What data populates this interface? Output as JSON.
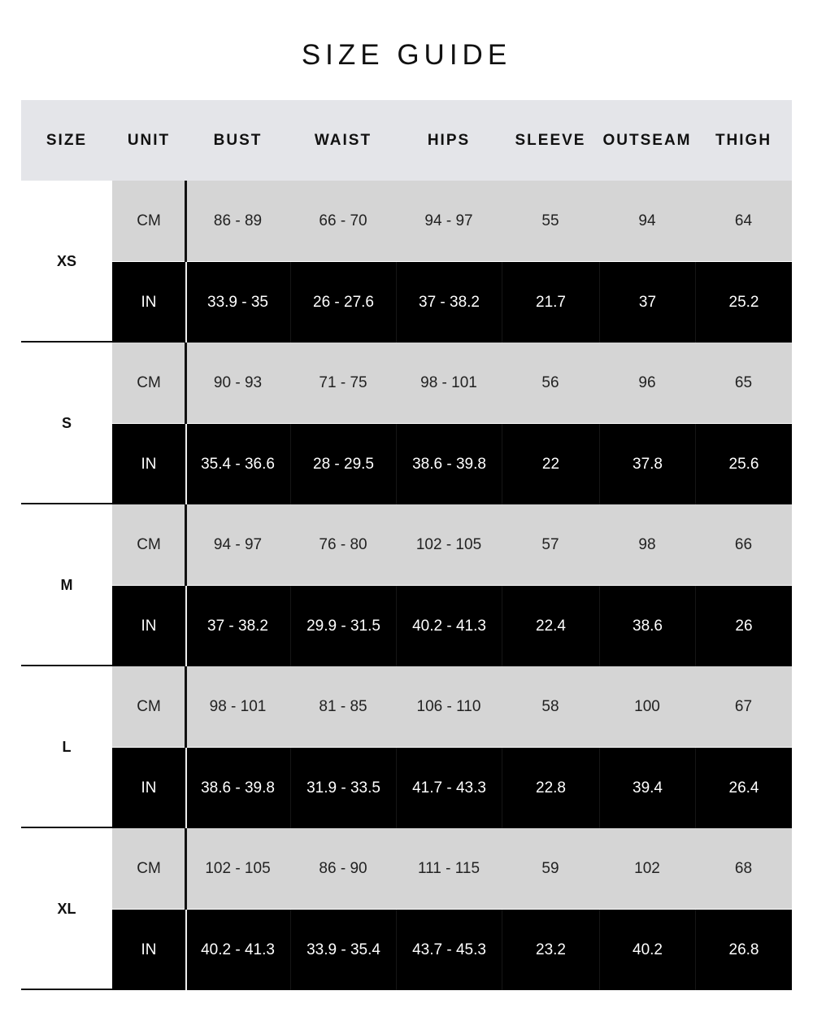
{
  "title": "SIZE GUIDE",
  "columns": [
    "SIZE",
    "UNIT",
    "BUST",
    "WAIST",
    "HIPS",
    "SLEEVE",
    "OUTSEAM",
    "THIGH"
  ],
  "sizes": [
    {
      "size": "XS",
      "cm": {
        "unit": "CM",
        "values": [
          "86 - 89",
          "66 - 70",
          "94 - 97",
          "55",
          "94",
          "64"
        ]
      },
      "in": {
        "unit": "IN",
        "values": [
          "33.9 - 35",
          "26 - 27.6",
          "37 - 38.2",
          "21.7",
          "37",
          "25.2"
        ]
      }
    },
    {
      "size": "S",
      "cm": {
        "unit": "CM",
        "values": [
          "90 - 93",
          "71 - 75",
          "98 - 101",
          "56",
          "96",
          "65"
        ]
      },
      "in": {
        "unit": "IN",
        "values": [
          "35.4 - 36.6",
          "28 - 29.5",
          "38.6 - 39.8",
          "22",
          "37.8",
          "25.6"
        ]
      }
    },
    {
      "size": "M",
      "cm": {
        "unit": "CM",
        "values": [
          "94 - 97",
          "76 - 80",
          "102 - 105",
          "57",
          "98",
          "66"
        ]
      },
      "in": {
        "unit": "IN",
        "values": [
          "37 - 38.2",
          "29.9 - 31.5",
          "40.2 - 41.3",
          "22.4",
          "38.6",
          "26"
        ]
      }
    },
    {
      "size": "L",
      "cm": {
        "unit": "CM",
        "values": [
          "98 - 101",
          "81 - 85",
          "106 - 110",
          "58",
          "100",
          "67"
        ]
      },
      "in": {
        "unit": "IN",
        "values": [
          "38.6 - 39.8",
          "31.9 - 33.5",
          "41.7 - 43.3",
          "22.8",
          "39.4",
          "26.4"
        ]
      }
    },
    {
      "size": "XL",
      "cm": {
        "unit": "CM",
        "values": [
          "102 - 105",
          "86 - 90",
          "111 - 115",
          "59",
          "102",
          "68"
        ]
      },
      "in": {
        "unit": "IN",
        "values": [
          "40.2 - 41.3",
          "33.9 - 35.4",
          "43.7 - 45.3",
          "23.2",
          "40.2",
          "26.8"
        ]
      }
    }
  ]
}
